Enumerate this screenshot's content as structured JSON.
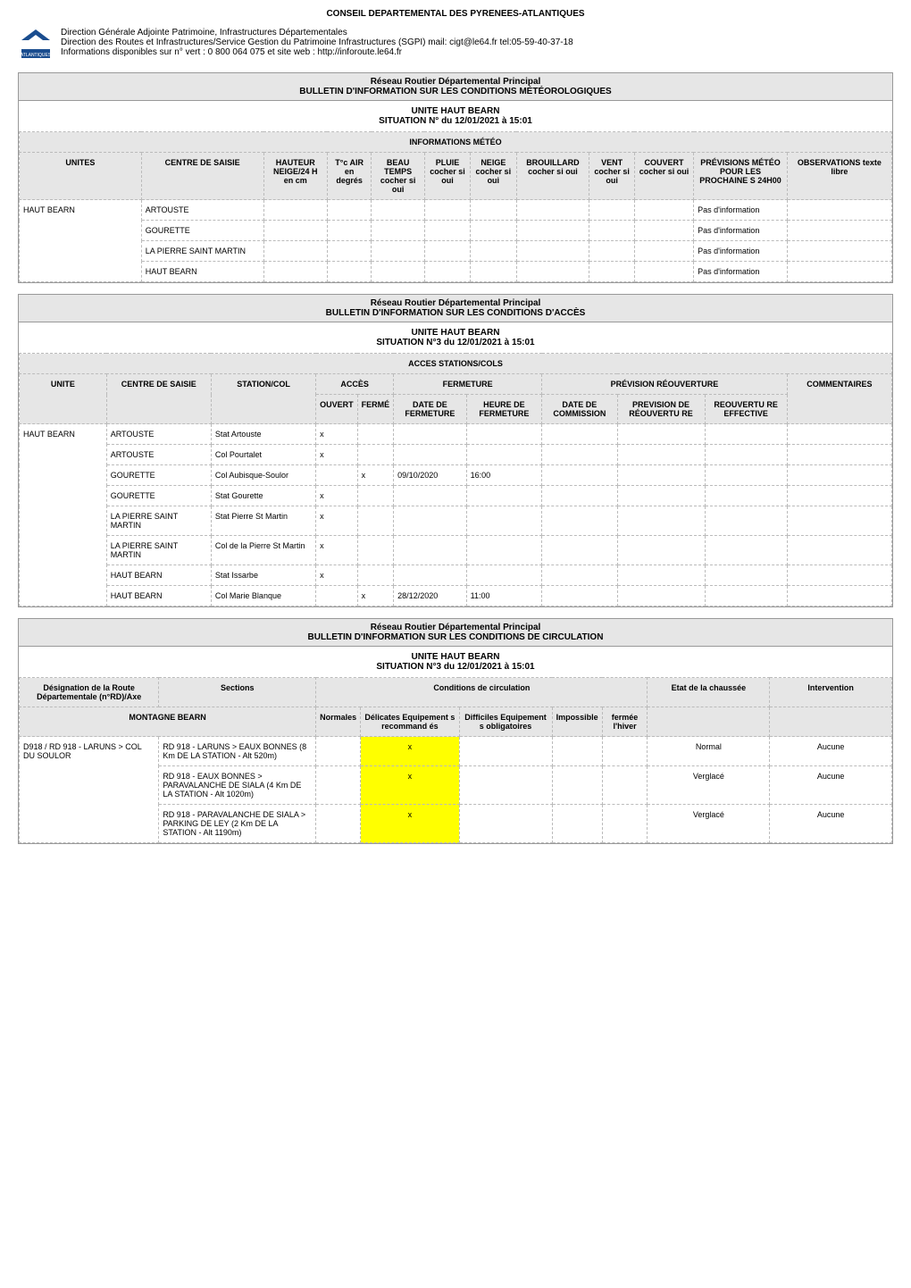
{
  "title_main": "CONSEIL DEPARTEMENTAL DES PYRENEES-ATLANTIQUES",
  "header": {
    "l1": "Direction Générale Adjointe Patrimoine, Infrastructures Départementales",
    "l2": "Direction des Routes et Infrastructures/Service Gestion du Patrimoine Infrastructures (SGPI) mail: cigt@le64.fr tel:05-59-40-37-18",
    "l3": "Informations disponibles sur n° vert : 0 800 064 075 et site web : http://inforoute.le64.fr"
  },
  "meteo": {
    "banner1": "Réseau Routier Départemental Principal",
    "banner2": "BULLETIN D'INFORMATION SUR LES CONDITIONS MÉTÉOROLOGIQUES",
    "sub1": "UNITE HAUT BEARN",
    "sub2": "SITUATION N° du 12/01/2021 à 15:01",
    "info_header": "INFORMATIONS MÉTÉO",
    "cols": {
      "unites": "UNITES",
      "centre": "CENTRE DE SAISIE",
      "hauteur": "HAUTEUR NEIGE/24 H en cm",
      "tc": "T°c AIR en degrés",
      "beau": "BEAU TEMPS cocher si oui",
      "pluie": "PLUIE cocher si oui",
      "neige": "NEIGE cocher si oui",
      "brouillard": "BROUILLARD cocher si oui",
      "vent": "VENT cocher si oui",
      "couvert": "COUVERT cocher si oui",
      "prev": "PRÉVISIONS MÉTÉO POUR LES PROCHAINE S 24H00",
      "obs": "OBSERVATIONS texte libre"
    },
    "rows": [
      {
        "unite": "HAUT BEARN",
        "centre": "ARTOUSTE",
        "prev": "Pas d'information"
      },
      {
        "unite": "",
        "centre": "GOURETTE",
        "prev": "Pas d'information"
      },
      {
        "unite": "",
        "centre": "LA PIERRE SAINT MARTIN",
        "prev": "Pas d'information"
      },
      {
        "unite": "",
        "centre": "HAUT BEARN",
        "prev": "Pas d'information"
      }
    ]
  },
  "acces": {
    "banner1": "Réseau Routier Départemental Principal",
    "banner2": "BULLETIN D'INFORMATION SUR LES CONDITIONS D'ACCÈS",
    "sub1": "UNITE HAUT BEARN",
    "sub2": "SITUATION N°3 du 12/01/2021 à 15:01",
    "info_header": "ACCES STATIONS/COLS",
    "cols": {
      "unite": "UNITE",
      "centre": "CENTRE DE SAISIE",
      "station": "STATION/COL",
      "acces": "ACCÈS",
      "ouvert": "OUVERT",
      "ferme": "FERMÉ",
      "fermeture": "FERMETURE",
      "datef": "DATE DE FERMETURE",
      "heuref": "HEURE DE FERMETURE",
      "prevreo": "PRÉVISION RÉOUVERTURE",
      "datec": "DATE DE COMMISSION",
      "prevdr": "PREVISION DE RÉOUVERTU RE",
      "reoe": "REOUVERTU RE EFFECTIVE",
      "comm": "COMMENTAIRES"
    },
    "rows": [
      {
        "unite": "HAUT BEARN",
        "centre": "ARTOUSTE",
        "station": "Stat Artouste",
        "ouvert": "x"
      },
      {
        "unite": "",
        "centre": "ARTOUSTE",
        "station": "Col Pourtalet",
        "ouvert": "x"
      },
      {
        "unite": "",
        "centre": "GOURETTE",
        "station": "Col Aubisque-Soulor",
        "ferme": "x",
        "datef": "09/10/2020",
        "heuref": "16:00"
      },
      {
        "unite": "",
        "centre": "GOURETTE",
        "station": "Stat Gourette",
        "ouvert": "x"
      },
      {
        "unite": "",
        "centre": "LA PIERRE SAINT MARTIN",
        "station": "Stat Pierre St Martin",
        "ouvert": "x"
      },
      {
        "unite": "",
        "centre": "LA PIERRE SAINT MARTIN",
        "station": "Col de la Pierre St Martin",
        "ouvert": "x"
      },
      {
        "unite": "",
        "centre": "HAUT BEARN",
        "station": "Stat Issarbe",
        "ouvert": "x"
      },
      {
        "unite": "",
        "centre": "HAUT BEARN",
        "station": "Col Marie Blanque",
        "ferme": "x",
        "datef": "28/12/2020",
        "heuref": "11:00"
      }
    ]
  },
  "circ": {
    "banner1": "Réseau Routier Départemental Principal",
    "banner2": "BULLETIN D'INFORMATION SUR LES CONDITIONS DE CIRCULATION",
    "sub1": "UNITE HAUT BEARN",
    "sub2": "SITUATION N°3 du 12/01/2021 à 15:01",
    "cols": {
      "route": "Désignation de la Route Départementale (n°RD)/Axe",
      "sections": "Sections",
      "cond": "Conditions de circulation",
      "normales": "Normales",
      "delicates": "Délicates Equipement s recommand és",
      "difficiles": "Difficiles Equipement s obligatoires",
      "impossible": "Impossible",
      "fermee": "fermée l'hiver",
      "etat": "Etat de la chaussée",
      "interv": "Intervention"
    },
    "montagne": "MONTAGNE BEARN",
    "rows": [
      {
        "route": "D918 / RD 918 - LARUNS > COL DU SOULOR",
        "section": "RD 918 - LARUNS > EAUX BONNES (8 Km DE LA STATION - Alt 520m)",
        "delicates": "x",
        "etat": "Normal",
        "interv": "Aucune"
      },
      {
        "route": "",
        "section": "RD 918 - EAUX BONNES > PARAVALANCHE DE SIALA (4 Km DE LA STATION - Alt 1020m)",
        "delicates": "x",
        "etat": "Verglacé",
        "interv": "Aucune"
      },
      {
        "route": "",
        "section": "RD 918 - PARAVALANCHE DE SIALA > PARKING DE LEY (2 Km DE LA STATION - Alt 1190m)",
        "delicates": "x",
        "etat": "Verglacé",
        "interv": "Aucune"
      }
    ]
  },
  "style": {
    "grey": "#e6e6e6",
    "yellow": "#ffff00",
    "border": "#bbbbbb"
  }
}
